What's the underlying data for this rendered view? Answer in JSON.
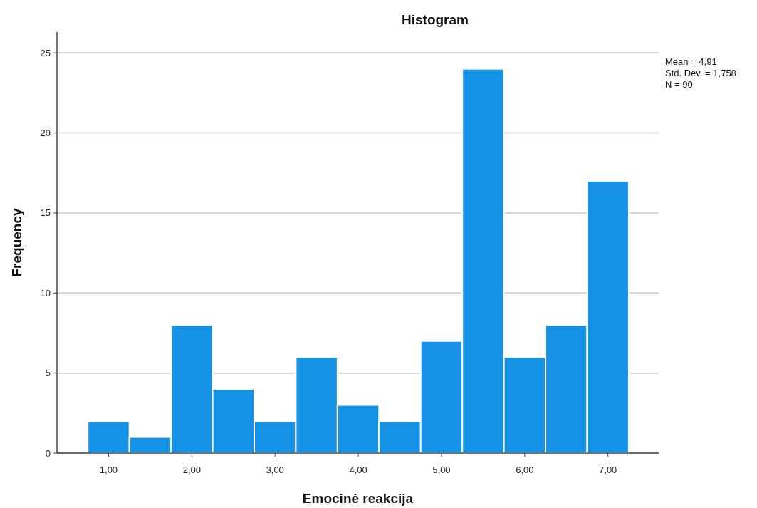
{
  "chart_data": {
    "type": "histogram",
    "title": "Histogram",
    "xlabel": "Emocinė reakcija",
    "ylabel": "Frequency",
    "bins": [
      0.75,
      1.25,
      1.75,
      2.25,
      2.75,
      3.25,
      3.75,
      4.25,
      4.75,
      5.25,
      5.75,
      6.25,
      6.75,
      7.25
    ],
    "values": [
      2,
      1,
      8,
      4,
      2,
      6,
      3,
      2,
      7,
      24,
      6,
      8,
      17
    ],
    "color": "#1592e6",
    "xlim": [
      0.38,
      7.61
    ],
    "xticks": [
      {
        "value": 1,
        "label": "1,00"
      },
      {
        "value": 2,
        "label": "2,00"
      },
      {
        "value": 3,
        "label": "3,00"
      },
      {
        "value": 4,
        "label": "4,00"
      },
      {
        "value": 5,
        "label": "5,00"
      },
      {
        "value": 6,
        "label": "6,00"
      },
      {
        "value": 7,
        "label": "7,00"
      }
    ],
    "ylim": [
      0,
      26.3
    ],
    "yticks": [
      0,
      5,
      10,
      15,
      20,
      25
    ],
    "grid": "y",
    "annotations": [
      "Mean = 4,91",
      "Std. Dev. = 1,758",
      "N = 90"
    ]
  }
}
